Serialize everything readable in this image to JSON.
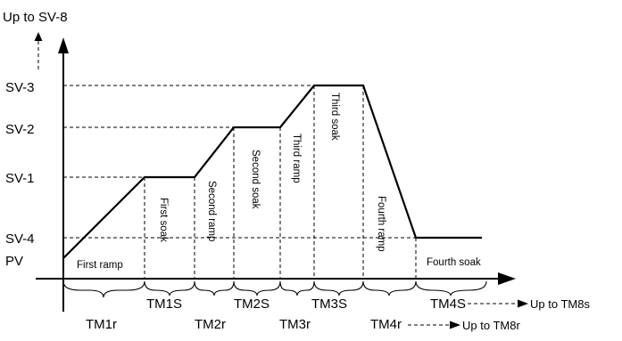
{
  "y_axis": {
    "top_label": "Up to SV-8",
    "levels": [
      {
        "key": "sv3",
        "label": "SV-3"
      },
      {
        "key": "sv2",
        "label": "SV-2"
      },
      {
        "key": "sv1",
        "label": "SV-1"
      },
      {
        "key": "sv4",
        "label": "SV-4"
      },
      {
        "key": "pv",
        "label": "PV"
      }
    ]
  },
  "segments": {
    "first_ramp": "First ramp",
    "first_soak": "First soak",
    "second_ramp": "Second ramp",
    "second_soak": "Second soak",
    "third_ramp": "Third ramp",
    "third_soak": "Third soak",
    "fourth_ramp": "Fourth ramp",
    "fourth_soak": "Fourth soak"
  },
  "timers": {
    "tm1r": "TM1r",
    "tm1s": "TM1S",
    "tm2r": "TM2r",
    "tm2s": "TM2S",
    "tm3r": "TM3r",
    "tm3s": "TM3S",
    "tm4r": "TM4r",
    "tm4s": "TM4S"
  },
  "continuations": {
    "soak": "Up to TM8s",
    "ramp": "Up to TM8r"
  }
}
